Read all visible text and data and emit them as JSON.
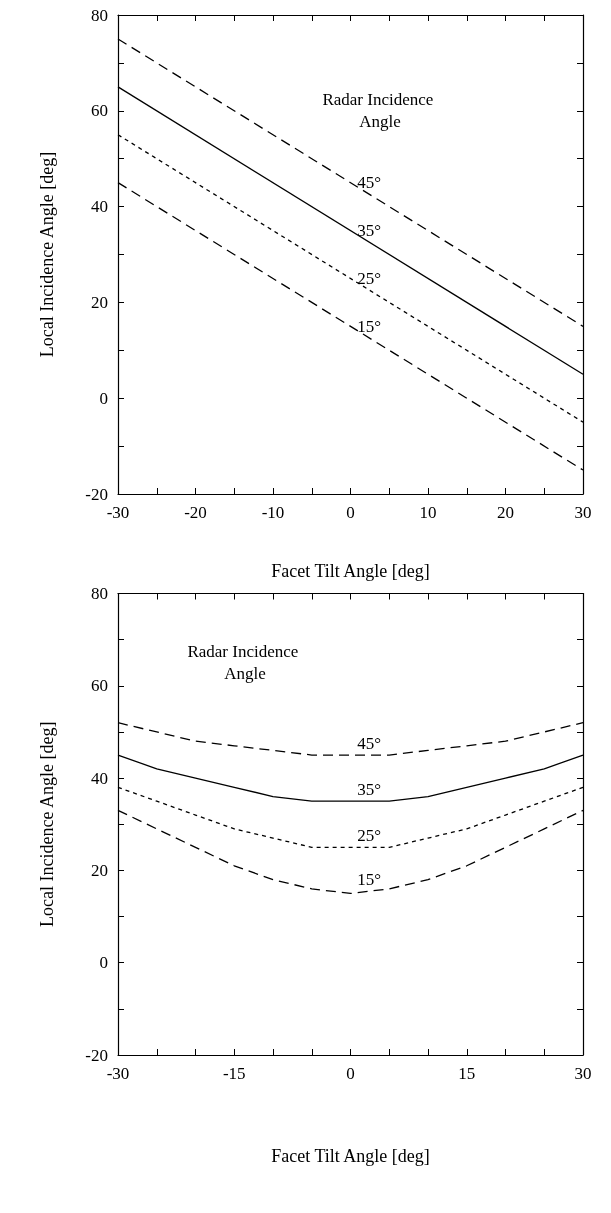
{
  "chart_data": [
    {
      "type": "line",
      "xlabel": "Facet Tilt Angle [deg]",
      "ylabel": "Local Incidence Angle [deg]",
      "x": [
        -30,
        30
      ],
      "series": [
        {
          "name": "45°",
          "color": "#000000",
          "line_style": "dashed",
          "values": [
            75,
            15
          ]
        },
        {
          "name": "35°",
          "color": "#000000",
          "line_style": "solid",
          "values": [
            65,
            5
          ]
        },
        {
          "name": "25°",
          "color": "#000000",
          "line_style": "dotted",
          "values": [
            55,
            -5
          ]
        },
        {
          "name": "15°",
          "color": "#000000",
          "line_style": "dashed",
          "values": [
            45,
            -15
          ]
        }
      ],
      "xlim": [
        -30,
        30
      ],
      "xticks": [
        -30,
        {
          "value": -25,
          "label": null
        },
        -20,
        {
          "value": -15,
          "label": null
        },
        -10,
        {
          "value": -5,
          "label": null
        },
        0,
        {
          "value": 5,
          "label": null
        },
        10,
        {
          "value": 15,
          "label": null
        },
        20,
        {
          "value": 25,
          "label": null
        },
        30
      ],
      "ylim": [
        -20,
        80
      ],
      "yticks": [
        -20,
        {
          "value": -10,
          "label": null
        },
        0,
        {
          "value": 10,
          "label": null
        },
        20,
        {
          "value": 30,
          "label": null
        },
        40,
        {
          "value": 50,
          "label": null
        },
        60,
        {
          "value": 70,
          "label": null
        },
        80
      ],
      "annotations": [
        "Radar Incidence Angle"
      ],
      "marker": "none"
    },
    {
      "type": "line",
      "xlabel": "Facet Tilt Angle [deg]",
      "ylabel": "Local Incidence Angle [deg]",
      "x": [
        -30,
        -25,
        -20,
        -15,
        -10,
        -5,
        0,
        5,
        10,
        15,
        20,
        25,
        30
      ],
      "series": [
        {
          "name": "45°",
          "color": "#000000",
          "line_style": "dashed",
          "values": [
            52,
            50,
            48,
            47,
            46,
            45,
            45,
            45,
            46,
            47,
            48,
            50,
            52
          ]
        },
        {
          "name": "35°",
          "color": "#000000",
          "line_style": "solid",
          "values": [
            45,
            42,
            40,
            38,
            36,
            35,
            35,
            35,
            36,
            38,
            40,
            42,
            45
          ]
        },
        {
          "name": "25°",
          "color": "#000000",
          "line_style": "dotted",
          "values": [
            38,
            35,
            32,
            29,
            27,
            25,
            25,
            25,
            27,
            29,
            32,
            35,
            38
          ]
        },
        {
          "name": "15°",
          "color": "#000000",
          "line_style": "dashed",
          "values": [
            33,
            29,
            25,
            21,
            18,
            16,
            15,
            16,
            18,
            21,
            25,
            29,
            33
          ]
        }
      ],
      "xlim": [
        -30,
        30
      ],
      "xticks": [
        -30,
        {
          "value": -25,
          "label": null
        },
        {
          "value": -20,
          "label": null
        },
        -15,
        {
          "value": -10,
          "label": null
        },
        {
          "value": -5,
          "label": null
        },
        0,
        {
          "value": 5,
          "label": null
        },
        {
          "value": 10,
          "label": null
        },
        15,
        {
          "value": 20,
          "label": null
        },
        {
          "value": 25,
          "label": null
        },
        30
      ],
      "ylim": [
        -20,
        80
      ],
      "yticks": [
        -20,
        {
          "value": -10,
          "label": null
        },
        0,
        {
          "value": 10,
          "label": null
        },
        20,
        {
          "value": 30,
          "label": null
        },
        40,
        {
          "value": 50,
          "label": null
        },
        60,
        {
          "value": 70,
          "label": null
        },
        80
      ],
      "annotations": [
        "Radar Incidence Angle"
      ],
      "marker": "none"
    }
  ]
}
